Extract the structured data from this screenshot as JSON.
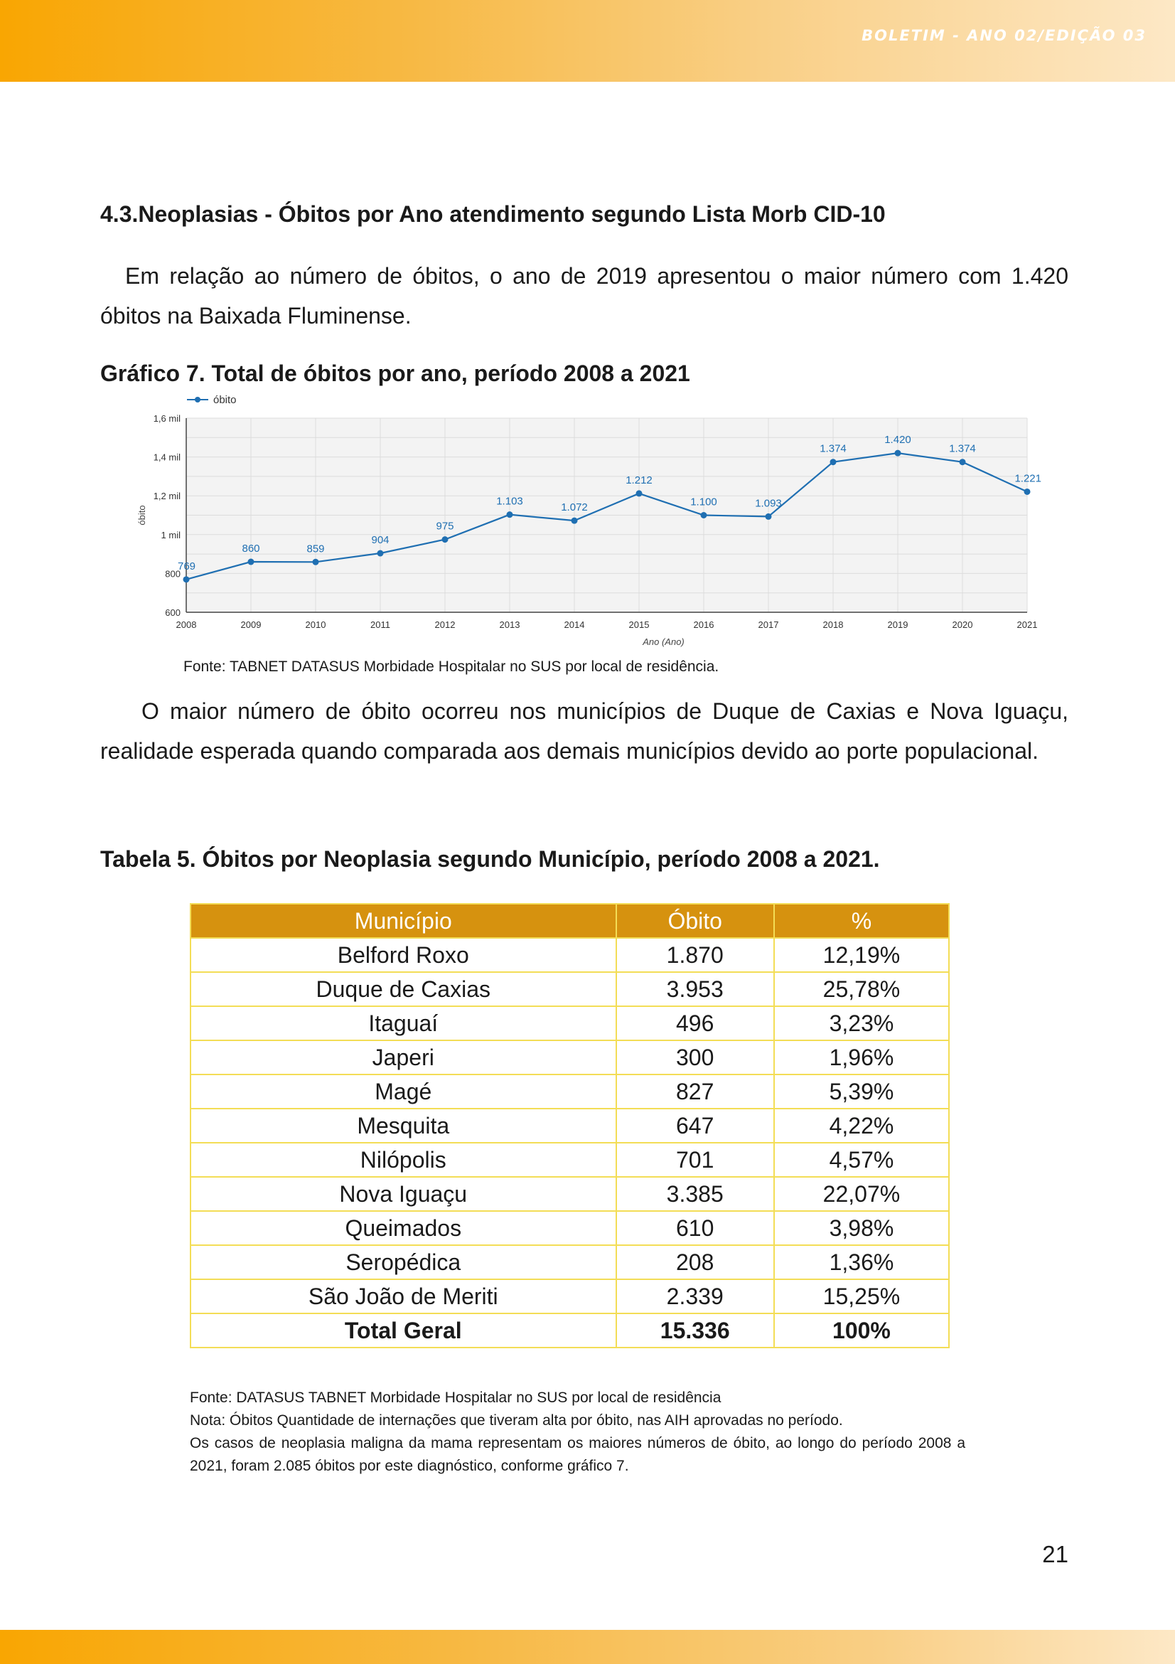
{
  "header": {
    "title": "BOLETIM - ANO 02/EDIÇÃO 03"
  },
  "section": {
    "heading": "4.3.Neoplasias - Óbitos por Ano atendimento segundo Lista Morb CID-10"
  },
  "paragraphs": {
    "p1": "Em relação ao número de óbitos, o ano de 2019 apresentou o maior número com 1.420 óbitos na Baixada Fluminense.",
    "p2": "O maior número de óbito ocorreu nos municípios de Duque de Caxias e Nova Iguaçu, realidade esperada quando comparada aos demais municípios devido ao porte populacional."
  },
  "chart": {
    "title": "Gráfico 7. Total de óbitos por ano, período 2008 a 2021",
    "source": "Fonte: TABNET DATASUS Morbidade Hospitalar no SUS por local de residência."
  },
  "chart_data": {
    "type": "line",
    "xlabel": "Ano (Ano)",
    "ylabel": "óbito",
    "ylim": [
      600,
      1600
    ],
    "yticks": [
      {
        "value": 600,
        "label": "600"
      },
      {
        "value": 800,
        "label": "800"
      },
      {
        "value": 1000,
        "label": "1 mil"
      },
      {
        "value": 1200,
        "label": "1,2 mil"
      },
      {
        "value": 1400,
        "label": "1,4 mil"
      },
      {
        "value": 1600,
        "label": "1,6 mil"
      }
    ],
    "legend": "top-left",
    "grid": true,
    "line_color": "#1f6fb2",
    "x": [
      "2008",
      "2009",
      "2010",
      "2011",
      "2012",
      "2013",
      "2014",
      "2015",
      "2016",
      "2017",
      "2018",
      "2019",
      "2020",
      "2021"
    ],
    "series": [
      {
        "name": "óbito",
        "values": [
          769,
          860,
          859,
          904,
          975,
          1103,
          1072,
          1212,
          1100,
          1093,
          1374,
          1420,
          1374,
          1221
        ],
        "labels": [
          "769",
          "860",
          "859",
          "904",
          "975",
          "1.103",
          "1.072",
          "1.212",
          "1.100",
          "1.093",
          "1.374",
          "1.420",
          "1.374",
          "1.221"
        ]
      }
    ]
  },
  "table": {
    "title": "Tabela 5. Óbitos por Neoplasia segundo Município, período 2008 a 2021.",
    "headers": [
      "Município",
      "Óbito",
      "%"
    ],
    "rows": [
      [
        "Belford Roxo",
        "1.870",
        "12,19%"
      ],
      [
        "Duque de Caxias",
        "3.953",
        "25,78%"
      ],
      [
        "Itaguaí",
        "496",
        "3,23%"
      ],
      [
        "Japeri",
        "300",
        "1,96%"
      ],
      [
        "Magé",
        "827",
        "5,39%"
      ],
      [
        "Mesquita",
        "647",
        "4,22%"
      ],
      [
        "Nilópolis",
        "701",
        "4,57%"
      ],
      [
        "Nova Iguaçu",
        "3.385",
        "22,07%"
      ],
      [
        "Queimados",
        "610",
        "3,98%"
      ],
      [
        "Seropédica",
        "208",
        "1,36%"
      ],
      [
        "São João de Meriti",
        "2.339",
        "15,25%"
      ]
    ],
    "total": [
      "Total Geral",
      "15.336",
      "100%"
    ]
  },
  "notes": {
    "source": "Fonte: DATASUS TABNET Morbidade Hospitalar no SUS por local de residência",
    "note": "Nota: Óbitos Quantidade de internações que tiveram alta por óbito, nas AIH aprovadas no período.",
    "text": "Os casos de neoplasia maligna da mama representam os maiores números de óbito, ao longo do período 2008 a 2021, foram 2.085 óbitos por este diagnóstico, conforme gráfico 7."
  },
  "page": {
    "number": "21"
  }
}
